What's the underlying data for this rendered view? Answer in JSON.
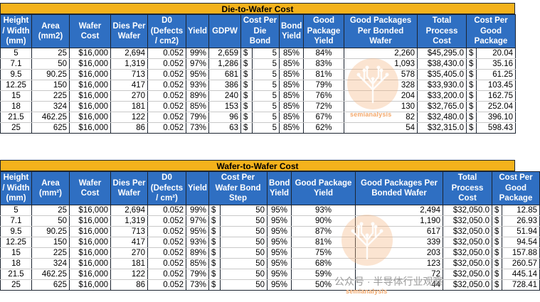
{
  "die_to_wafer": {
    "title": "Die-to-Wafer Cost",
    "headers": [
      "Height / Width (mm)",
      "Area (mm2)",
      "Wafer Cost",
      "Dies Per Wafer",
      "D0 (Defects / cm2)",
      "Yield",
      "GDPW",
      "Cost Per Die Bond",
      "Bond Yield",
      "Good Package Yield",
      "Good Packages Per Bonded Wafer",
      "Total Process Cost",
      "Cost Per Good Package"
    ],
    "rows": [
      [
        "5",
        "25",
        "$16,000",
        "2,694",
        "0.052",
        "99%",
        "2,659",
        "$",
        "5",
        "85%",
        "84%",
        "2,260",
        "$45,295.0",
        "$",
        "20.04"
      ],
      [
        "7.1",
        "50",
        "$16,000",
        "1,319",
        "0.052",
        "97%",
        "1,286",
        "$",
        "5",
        "85%",
        "83%",
        "1,093",
        "$38,430.0",
        "$",
        "35.16"
      ],
      [
        "9.5",
        "90.25",
        "$16,000",
        "713",
        "0.052",
        "95%",
        "681",
        "$",
        "5",
        "85%",
        "81%",
        "578",
        "$35,405.0",
        "$",
        "61.25"
      ],
      [
        "12.25",
        "150",
        "$16,000",
        "417",
        "0.052",
        "93%",
        "386",
        "$",
        "5",
        "85%",
        "79%",
        "328",
        "$33,930.0",
        "$",
        "103.45"
      ],
      [
        "15",
        "225",
        "$16,000",
        "270",
        "0.052",
        "89%",
        "240",
        "$",
        "5",
        "85%",
        "76%",
        "204",
        "$33,200.0",
        "$",
        "162.75"
      ],
      [
        "18",
        "324",
        "$16,000",
        "181",
        "0.052",
        "85%",
        "153",
        "$",
        "5",
        "85%",
        "72%",
        "130",
        "$32,765.0",
        "$",
        "252.04"
      ],
      [
        "21.5",
        "462.25",
        "$16,000",
        "122",
        "0.052",
        "79%",
        "96",
        "$",
        "5",
        "85%",
        "67%",
        "82",
        "$32,480.0",
        "$",
        "396.10"
      ],
      [
        "25",
        "625",
        "$16,000",
        "86",
        "0.052",
        "73%",
        "63",
        "$",
        "5",
        "85%",
        "62%",
        "54",
        "$32,315.0",
        "$",
        "598.43"
      ]
    ]
  },
  "wafer_to_wafer": {
    "title": "Wafer-to-Wafer Cost",
    "headers": [
      "Height / Width (mm)",
      "Area (mm²)",
      "Wafer Cost",
      "Dies Per Wafer",
      "D0 (Defects / cm²)",
      "Yield",
      "Cost Per Wafer Bond Step",
      "Bond Yield",
      "Good Package Yield",
      "Good Packages Per Bonded Wafer",
      "Total Process Cost",
      "Cost Per Good Package"
    ],
    "rows": [
      [
        "5",
        "25",
        "$16,000",
        "2,694",
        "0.052",
        "99%",
        "$",
        "50",
        "95%",
        "93%",
        "2,494",
        "$32,050.0",
        "$",
        "12.85"
      ],
      [
        "7.1",
        "50",
        "$16,000",
        "1,319",
        "0.052",
        "97%",
        "$",
        "50",
        "95%",
        "90%",
        "1,190",
        "$32,050.0",
        "$",
        "26.93"
      ],
      [
        "9.5",
        "90.25",
        "$16,000",
        "713",
        "0.052",
        "95%",
        "$",
        "50",
        "95%",
        "87%",
        "617",
        "$32,050.0",
        "$",
        "51.94"
      ],
      [
        "12.25",
        "150",
        "$16,000",
        "417",
        "0.052",
        "93%",
        "$",
        "50",
        "95%",
        "81%",
        "339",
        "$32,050.0",
        "$",
        "94.54"
      ],
      [
        "15",
        "225",
        "$16,000",
        "270",
        "0.052",
        "89%",
        "$",
        "50",
        "95%",
        "75%",
        "203",
        "$32,050.0",
        "$",
        "157.88"
      ],
      [
        "18",
        "324",
        "$16,000",
        "181",
        "0.052",
        "85%",
        "$",
        "50",
        "95%",
        "68%",
        "123",
        "$32,050.0",
        "$",
        "260.57"
      ],
      [
        "21.5",
        "462.25",
        "$16,000",
        "122",
        "0.052",
        "79%",
        "$",
        "50",
        "95%",
        "59%",
        "72",
        "$32,050.0",
        "$",
        "445.14"
      ],
      [
        "25",
        "625",
        "$16,000",
        "86",
        "0.052",
        "73%",
        "$",
        "50",
        "95%",
        "50%",
        "44",
        "$32,050.0",
        "$",
        "728.41"
      ]
    ]
  },
  "watermark": {
    "brand": "semianalysis",
    "wechat": "公众号 · 半导体行业观察"
  }
}
